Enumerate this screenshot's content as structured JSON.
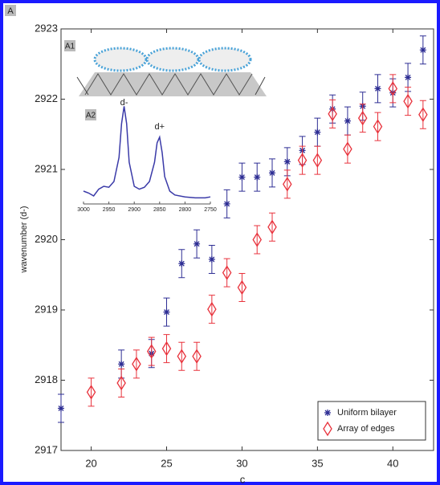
{
  "chart_data": [
    {
      "type": "scatter",
      "panel_label": "A",
      "x_label": "c",
      "y_label": "wavenumber (d-)",
      "xlim": [
        18,
        42.7
      ],
      "xticks": [
        20,
        25,
        30,
        35,
        40
      ],
      "ylim": [
        2917,
        2923
      ],
      "yticks": [
        2917,
        2918,
        2919,
        2920,
        2921,
        2922,
        2923
      ],
      "legend": "lower right",
      "series": [
        {
          "name": "Uniform bilayer",
          "color": "#2e2e94",
          "marker": "asterisk",
          "x": [
            18,
            22,
            24,
            25,
            26,
            27,
            28,
            29,
            30,
            31,
            32,
            33,
            34,
            35,
            36,
            37,
            38,
            39,
            40,
            41,
            42
          ],
          "values": [
            2917.6,
            2918.23,
            2918.38,
            2918.97,
            2919.66,
            2919.94,
            2919.72,
            2920.51,
            2920.89,
            2920.89,
            2920.95,
            2921.11,
            2921.27,
            2921.53,
            2921.86,
            2921.69,
            2921.9,
            2922.15,
            2922.09,
            2922.31,
            2922.7
          ],
          "errors": [
            0.2,
            0.2,
            0.2,
            0.2,
            0.2,
            0.2,
            0.2,
            0.2,
            0.2,
            0.2,
            0.2,
            0.2,
            0.2,
            0.2,
            0.2,
            0.2,
            0.2,
            0.2,
            0.2,
            0.2,
            0.2
          ]
        },
        {
          "name": "Array of edges",
          "color": "#e8323c",
          "marker": "diamond",
          "x": [
            20,
            22,
            23,
            24,
            25,
            26,
            27,
            28,
            29,
            30,
            31,
            32,
            33,
            34,
            35,
            36,
            37,
            38,
            39,
            40,
            41,
            42
          ],
          "values": [
            2917.83,
            2917.96,
            2918.23,
            2918.41,
            2918.45,
            2918.34,
            2918.34,
            2919.01,
            2919.53,
            2919.32,
            2920.0,
            2920.18,
            2920.79,
            2921.13,
            2921.13,
            2921.79,
            2921.29,
            2921.73,
            2921.61,
            2922.15,
            2921.97,
            2921.78
          ],
          "errors": [
            0.2,
            0.2,
            0.2,
            0.2,
            0.2,
            0.2,
            0.2,
            0.2,
            0.2,
            0.2,
            0.2,
            0.2,
            0.2,
            0.2,
            0.2,
            0.2,
            0.2,
            0.2,
            0.2,
            0.2,
            0.2,
            0.2
          ]
        }
      ]
    },
    {
      "type": "line",
      "panel_label": "A2",
      "xlim": [
        3000,
        2750
      ],
      "xticks": [
        3000,
        2950,
        2900,
        2850,
        2800,
        2750
      ],
      "ylim": [
        0,
        1
      ],
      "annotations": [
        {
          "text": "d-",
          "x": 2920
        },
        {
          "text": "d+",
          "x": 2850
        }
      ],
      "series": [
        {
          "color": "#3a3aa8",
          "x": [
            3000,
            2990,
            2980,
            2970,
            2960,
            2950,
            2940,
            2930,
            2925,
            2920,
            2915,
            2910,
            2900,
            2890,
            2880,
            2870,
            2860,
            2855,
            2850,
            2845,
            2840,
            2830,
            2820,
            2800,
            2780,
            2760,
            2750
          ],
          "values": [
            0.1,
            0.08,
            0.05,
            0.12,
            0.15,
            0.14,
            0.2,
            0.45,
            0.8,
            0.98,
            0.8,
            0.4,
            0.15,
            0.12,
            0.14,
            0.2,
            0.4,
            0.6,
            0.66,
            0.5,
            0.25,
            0.1,
            0.06,
            0.04,
            0.03,
            0.03,
            0.04
          ]
        }
      ]
    }
  ],
  "diagram": {
    "label": "A1"
  }
}
